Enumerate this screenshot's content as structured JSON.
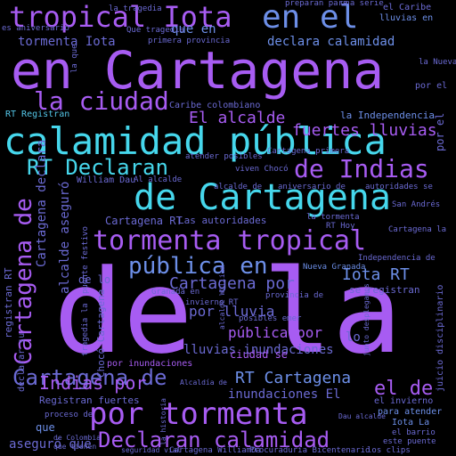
{
  "words": {
    "de_la": "de la",
    "en_cartagena": "en Cartagena",
    "calamidad_publica": "calamidad pública",
    "de_cartagena": "de Cartagena",
    "tormenta_tropical": "tormenta tropical",
    "por_tormenta": "por tormenta",
    "tropical_iota": "tropical Iota",
    "en_el": "en el",
    "la_ciudad": "la ciudad",
    "rt_declaran": "RT Declaran",
    "de_indias": "de Indias",
    "publica_en": "pública en",
    "declaran_calamidad": "Declaran calamidad",
    "cartagena_de": "Cartagena de",
    "el_alcalde": "El alcalde",
    "fuertes_lluvias": "fuertes lluvias",
    "cartagena_por": "Cartagena por",
    "iota_rt": "Iota RT",
    "indias_por": "Indias por",
    "el_de": "el de",
    "rt_cartagena": "RT Cartagena",
    "por_lluvia": "por lluvia",
    "publica_por": "pública por",
    "lluvias_inundaciones": "lluvias inundaciones",
    "declara_calamidad": "declara calamidad",
    "tormenta_iota": "tormenta Iota",
    "que_en": "que en",
    "inundaciones_el": "inundaciones El",
    "asegur_que": "aseguró que",
    "cartagena_rt": "Cartagena RT",
    "las_autoridades": "Las autoridades",
    "registran_fuertes": "Registran fuertes",
    "ciudad_se": "ciudad se",
    "se_registran": "se registran",
    "la_independencia": "la Independencia",
    "rt_registran": "RT Registran",
    "caribe_colombiano": "Caribe colombiano",
    "por_inundaciones": "por inundaciones",
    "de_lo": "de lo",
    "lo": "lo",
    "que": "que",
    "para_atender": "para atender",
    "el_invierno": "el invierno",
    "iota_la": "Iota La",
    "cartagena_primera": "Cartagena primera",
    "alcalde_de": "alcalde de",
    "aniversario_de": "aniversario de",
    "autoridades_se": "autoridades se",
    "nueva_granada": "Nueva Granada",
    "independencia_de": "Independencia de",
    "el_caribe": "el Caribe",
    "lluvias_en": "lluvias en",
    "preparan_para": "preparan para",
    "una_serie": "una serie",
    "que_tragedia": "Qué tragedia",
    "william_dau": "William Dau",
    "al_alcalde": "Al alcalde",
    "viven_choco": "viven Chocó",
    "atender_posibles": "atender posibles",
    "invierno_rt": "invierno RT",
    "posibles_emer": "posibles emer",
    "granada_en": "Granada en",
    "provincia_de": "provincia de",
    "por_el": "por el",
    "la_nueva": "la Nueva",
    "san_andres": "San Andrés",
    "cartagena_la": "Cartagena la",
    "la_tormenta": "la tormenta",
    "rt_hoy": "RT Hoy",
    "dau_alcalde": "Dau alcalde",
    "el_barrio": "el barrio",
    "este_puente": "este puente",
    "proceso_de": "proceso de",
    "alcaldia_de": "Alcaldía de",
    "de_colombia": "de Colombia",
    "que_tienen": "que tienen",
    "cartagena_williamia": "Cartagena WilliamDa",
    "procuradur_bicentenario": "Procuraduría Bicentenario",
    "los_clips": "los clips",
    "seguridad_vial": "seguridad vial",
    "es_aniversario": "es aniversario",
    "la_tragedia": "la tragedia",
    "primera_provincia": "primera provincia",
    "cartagena_de_v": "Cartagena de",
    "alcalde_aseguro": "alcalde aseguró",
    "cartagena_declara": "Cartagena declara",
    "registran_rt": "registran RT",
    "declarar_su": "declarar su",
    "choco_cartagena": "Chocó Cartagena",
    "tragedia_la": "tragedia la",
    "puente_festivo": "puente festivo",
    "por_el_v": "por el",
    "juicio_disciplinario": "juicio disciplinario",
    "la_que": "la que",
    "la_historia": "la historia",
    "alcalde_william": "alcalde William",
    "junto_desplegamos": "junto desplegamos"
  }
}
